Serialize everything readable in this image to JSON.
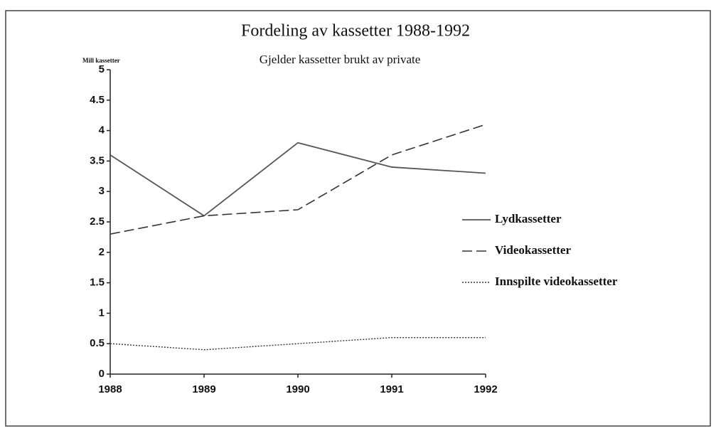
{
  "chart_data": {
    "type": "line",
    "title": "Fordeling av kassetter 1988-1992",
    "subtitle": "Gjelder kassetter brukt av private",
    "y_label": "Mill kassetter",
    "x": [
      1988,
      1989,
      1990,
      1991,
      1992
    ],
    "xlim": [
      1988,
      1992
    ],
    "xticks": [
      1988,
      1989,
      1990,
      1991,
      1992
    ],
    "ylim": [
      0,
      5
    ],
    "yticks": [
      0,
      0.5,
      1,
      1.5,
      2,
      2.5,
      3,
      3.5,
      4,
      4.5,
      5
    ],
    "legend": "right",
    "series": [
      {
        "name": "Lydkassetter",
        "color": "#555555",
        "dash": "solid",
        "values": [
          3.6,
          2.6,
          3.8,
          3.4,
          3.3
        ]
      },
      {
        "name": "Videokassetter",
        "color": "#333333",
        "dash": "dashed",
        "values": [
          2.3,
          2.6,
          2.7,
          3.6,
          4.1
        ]
      },
      {
        "name": "Innspilte videokassetter",
        "color": "#333333",
        "dash": "dotted",
        "values": [
          0.5,
          0.4,
          0.5,
          0.6,
          0.6
        ]
      }
    ]
  }
}
